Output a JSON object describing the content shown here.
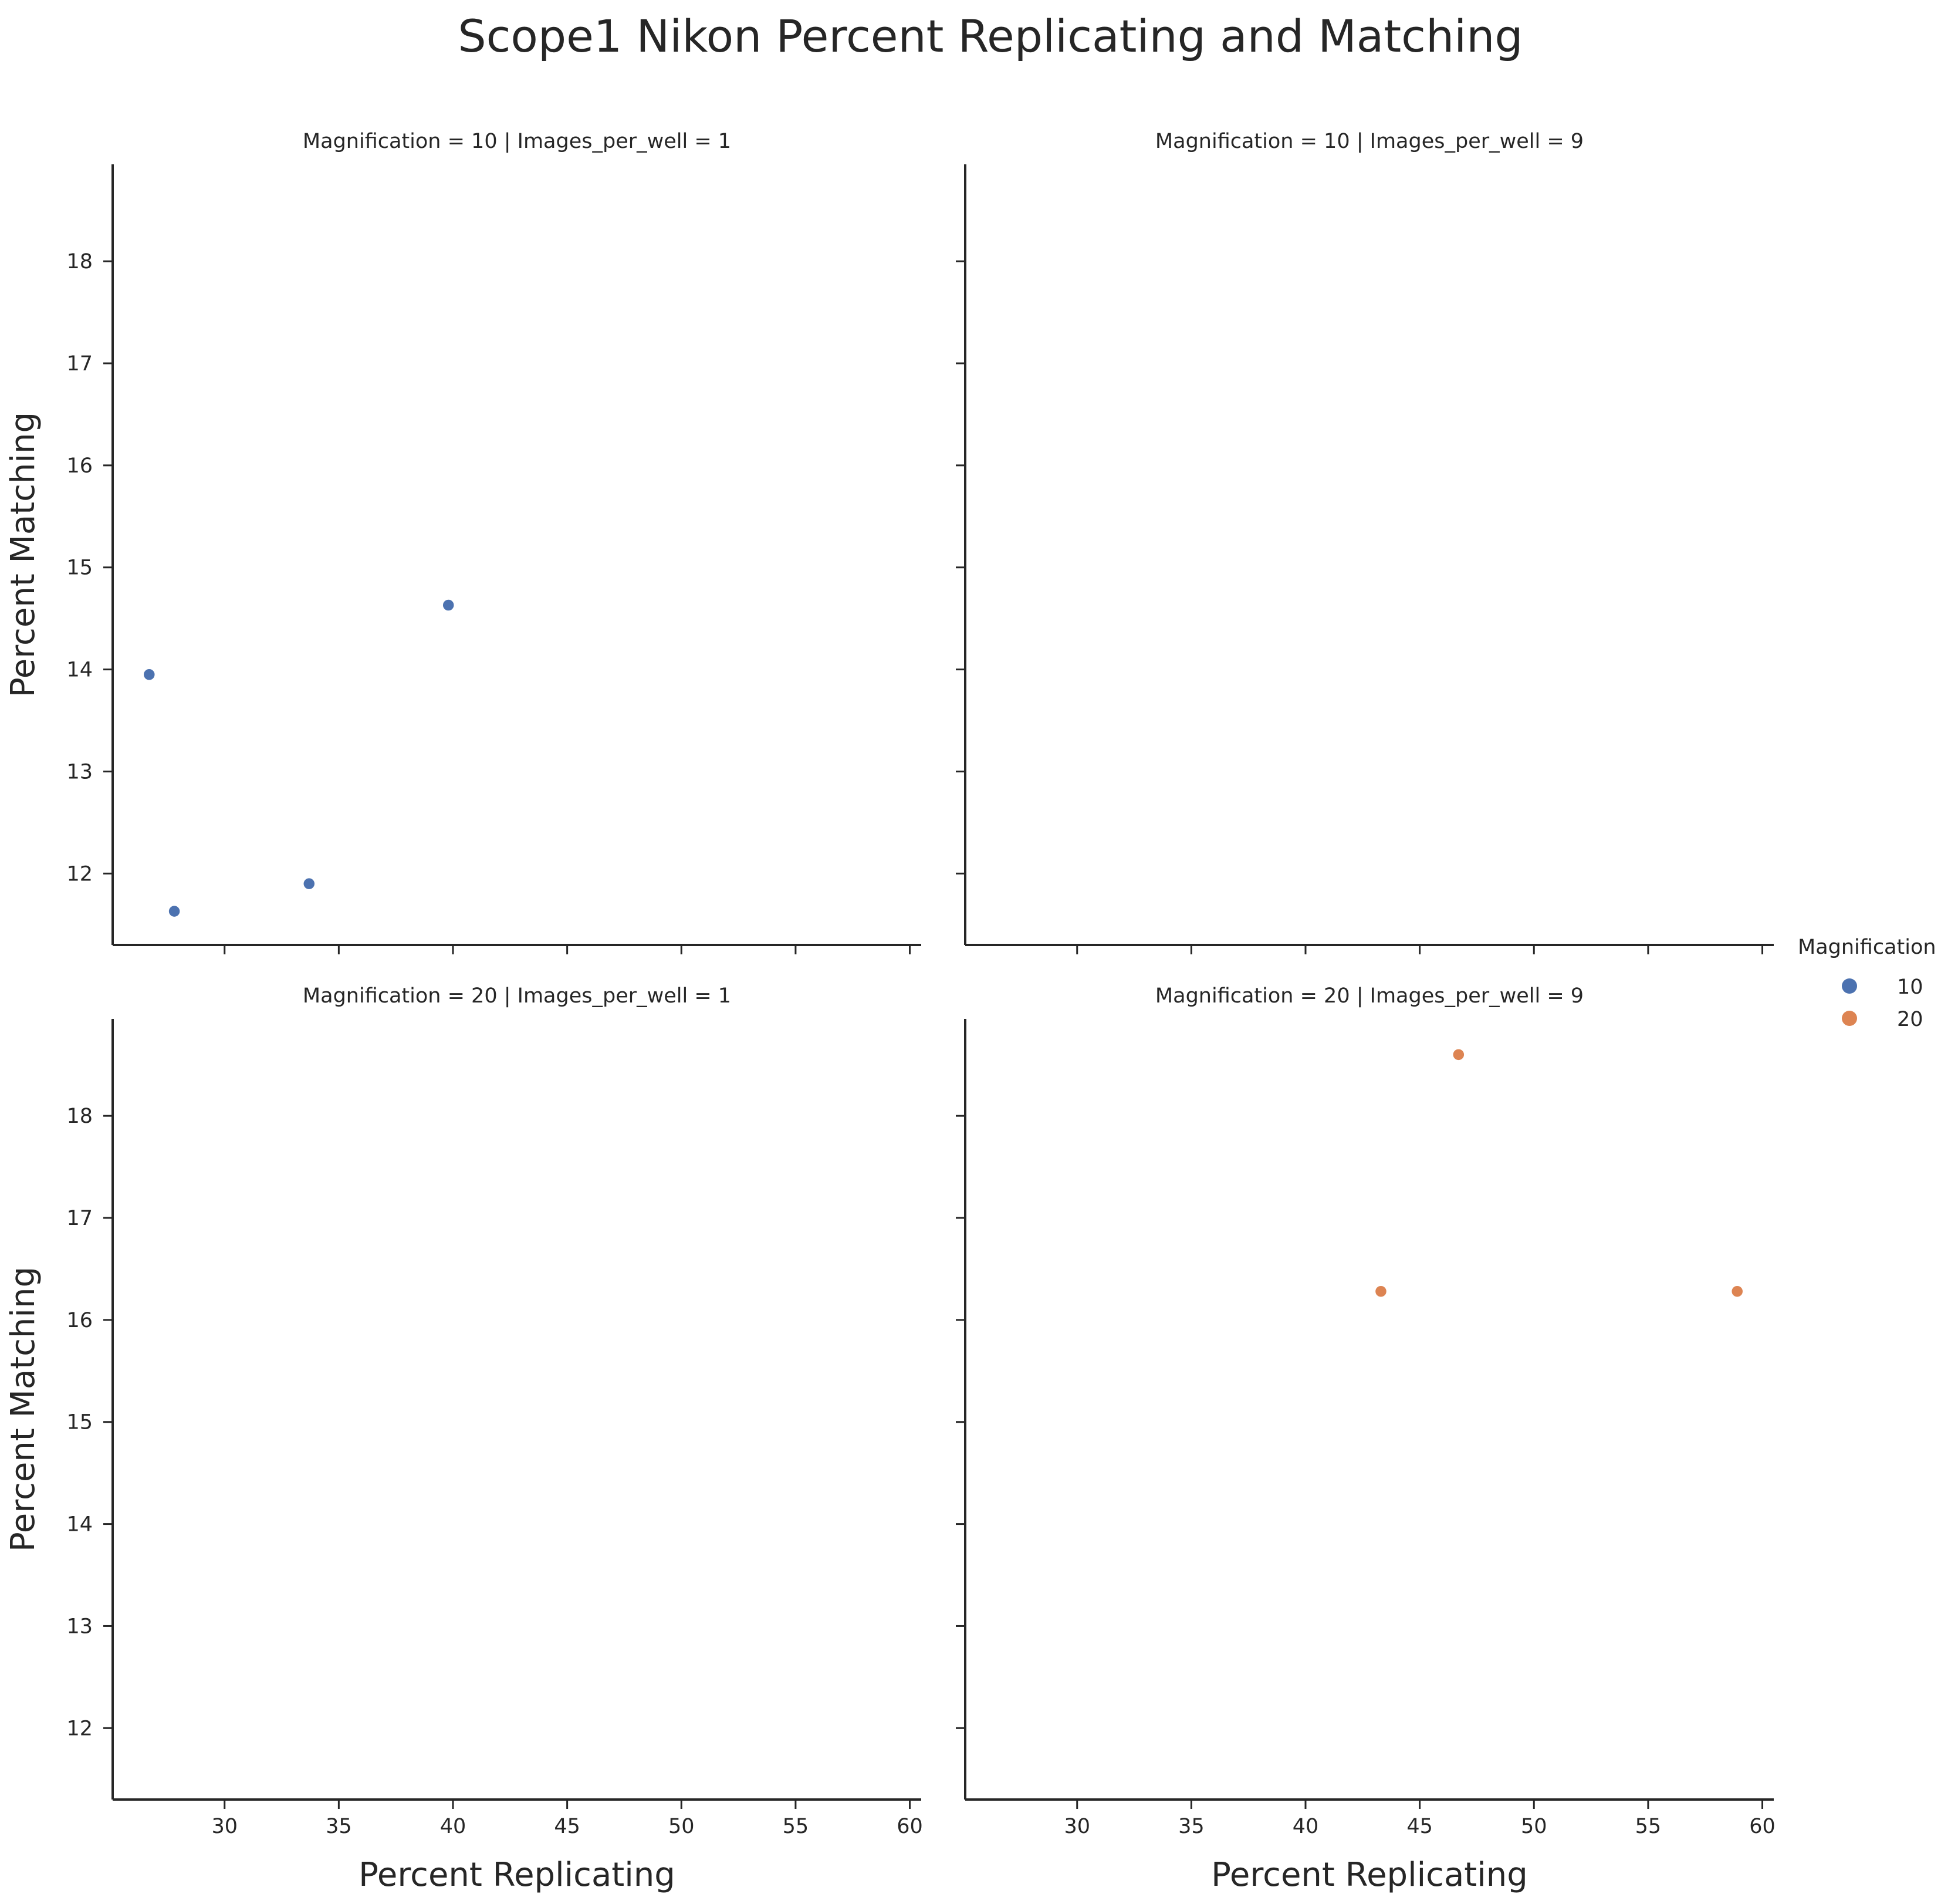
{
  "chart_data": {
    "type": "scatter",
    "title": "Scope1 Nikon Percent Replicating and Matching",
    "xlabel": "Percent Replicating",
    "ylabel": "Percent Matching",
    "xlim": [
      25.1,
      60.5
    ],
    "ylim": [
      11.3,
      18.95
    ],
    "xticks": [
      30,
      35,
      40,
      45,
      50,
      55,
      60
    ],
    "yticks": [
      12,
      13,
      14,
      15,
      16,
      17,
      18
    ],
    "grid": false,
    "legend": {
      "title": "Magnification",
      "placement": "center-right",
      "entries": [
        {
          "label": "10",
          "color": "#4c72b0"
        },
        {
          "label": "20",
          "color": "#dd8452"
        }
      ]
    },
    "facets": [
      {
        "title": "Magnification = 10 | Images_per_well = 1",
        "color": "#4c72b0",
        "points": [
          {
            "x": 26.7,
            "y": 13.95
          },
          {
            "x": 27.8,
            "y": 11.63
          },
          {
            "x": 33.7,
            "y": 11.9
          },
          {
            "x": 39.8,
            "y": 14.63
          }
        ]
      },
      {
        "title": "Magnification = 10 | Images_per_well = 9",
        "color": "#4c72b0",
        "points": []
      },
      {
        "title": "Magnification = 20 | Images_per_well = 1",
        "color": "#dd8452",
        "points": []
      },
      {
        "title": "Magnification = 20 | Images_per_well = 9",
        "color": "#dd8452",
        "points": [
          {
            "x": 43.3,
            "y": 16.28
          },
          {
            "x": 46.7,
            "y": 18.6
          },
          {
            "x": 58.9,
            "y": 16.28
          }
        ]
      }
    ]
  }
}
